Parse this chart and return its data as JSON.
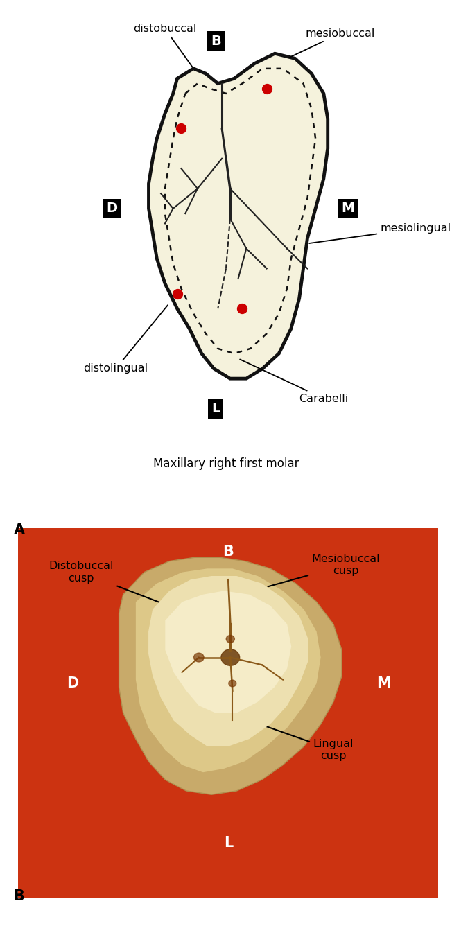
{
  "bg_color": "#ffffff",
  "panel_a_bg": "#f5f2dc",
  "tooth_outline_color": "#111111",
  "dotted_outline_color": "#111111",
  "groove_color": "#222222",
  "red_dot_color": "#cc0000",
  "photo_bg_color": "#cc3311",
  "title_a": "Maxillary right first molar",
  "label_A": "A",
  "label_B_panel": "B",
  "tooth_photo_base": "#d4b87a",
  "tooth_photo_mid": "#e8d5a0",
  "tooth_photo_light": "#f0e5c0",
  "groove_dark": "#8b5a1a",
  "fossa_color": "#6b3a0a"
}
